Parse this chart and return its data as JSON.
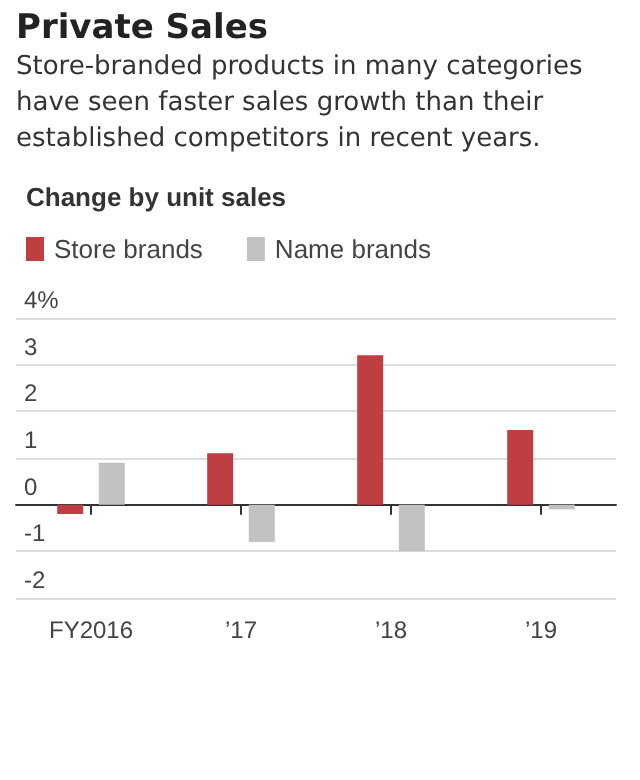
{
  "chart_data": {
    "type": "bar",
    "title": "Private Sales",
    "subtitle": "Store-branded products in many categories have seen faster sales growth than their established competitors in recent years.",
    "ylabel": "Change by unit sales",
    "categories": [
      "FY2016",
      "’17",
      "’18",
      "’19"
    ],
    "series": [
      {
        "name": "Store brands",
        "color": "#be3e41",
        "values": [
          -0.2,
          1.1,
          3.2,
          1.6
        ]
      },
      {
        "name": "Name brands",
        "color": "#c2c2c2",
        "values": [
          0.9,
          -0.8,
          -1.0,
          -0.1
        ]
      }
    ],
    "ylim": [
      -2,
      4
    ],
    "yticks": [
      -2,
      -1,
      0,
      1,
      2,
      3,
      {
        "value": 4,
        "label": "4%"
      }
    ],
    "grid": "y",
    "legend": "top left"
  }
}
